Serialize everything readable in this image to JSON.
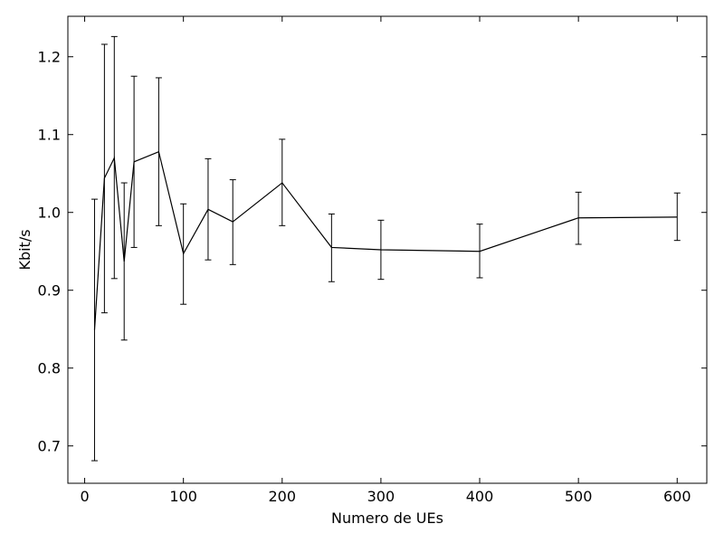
{
  "chart_data": {
    "type": "line",
    "xlabel": "Numero de UEs",
    "ylabel": "Kbit/s",
    "xlim": [
      -17,
      630
    ],
    "ylim": [
      0.652,
      1.252
    ],
    "xticks": [
      0,
      100,
      200,
      300,
      400,
      500,
      600
    ],
    "yticks": [
      0.7,
      0.8,
      0.9,
      1.0,
      1.1,
      1.2
    ],
    "xtick_labels": [
      "0",
      "100",
      "200",
      "300",
      "400",
      "500",
      "600"
    ],
    "ytick_labels": [
      "0.7",
      "0.8",
      "0.9",
      "1.0",
      "1.1",
      "1.2"
    ],
    "grid": false,
    "color": "#000000",
    "series": [
      {
        "x": [
          10,
          20,
          30,
          40,
          50,
          75,
          100,
          125,
          150,
          200,
          250,
          300,
          400,
          500,
          600
        ],
        "y": [
          0.849,
          1.044,
          1.07,
          0.937,
          1.065,
          1.078,
          0.947,
          1.004,
          0.988,
          1.038,
          0.955,
          0.952,
          0.95,
          0.993,
          0.994
        ],
        "err_low": [
          0.681,
          0.871,
          0.915,
          0.836,
          0.955,
          0.983,
          0.882,
          0.939,
          0.933,
          0.983,
          0.911,
          0.914,
          0.916,
          0.959,
          0.964
        ],
        "err_high": [
          1.017,
          1.216,
          1.226,
          1.038,
          1.175,
          1.173,
          1.011,
          1.069,
          1.042,
          1.094,
          0.998,
          0.99,
          0.985,
          1.026,
          1.025
        ]
      }
    ]
  }
}
